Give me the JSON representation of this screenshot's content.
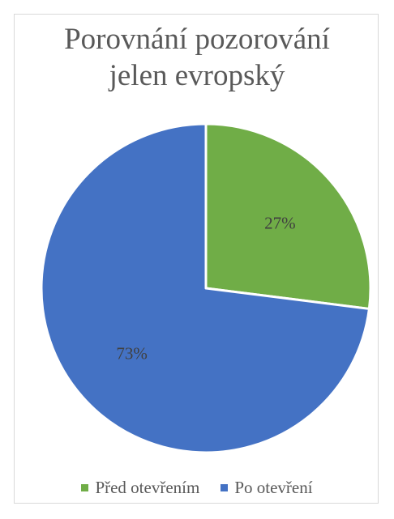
{
  "chart_data": {
    "type": "pie",
    "title_lines": [
      "Porovnání pozorování",
      "jelen evropský"
    ],
    "categories": [
      "Před otevřením",
      "Po otevření"
    ],
    "values": [
      27,
      73
    ],
    "data_labels": [
      "27%",
      "73%"
    ],
    "colors": [
      "#70AD47",
      "#4472C4"
    ],
    "legend_position": "bottom",
    "start_angle_deg": 0,
    "direction": "clockwise"
  }
}
